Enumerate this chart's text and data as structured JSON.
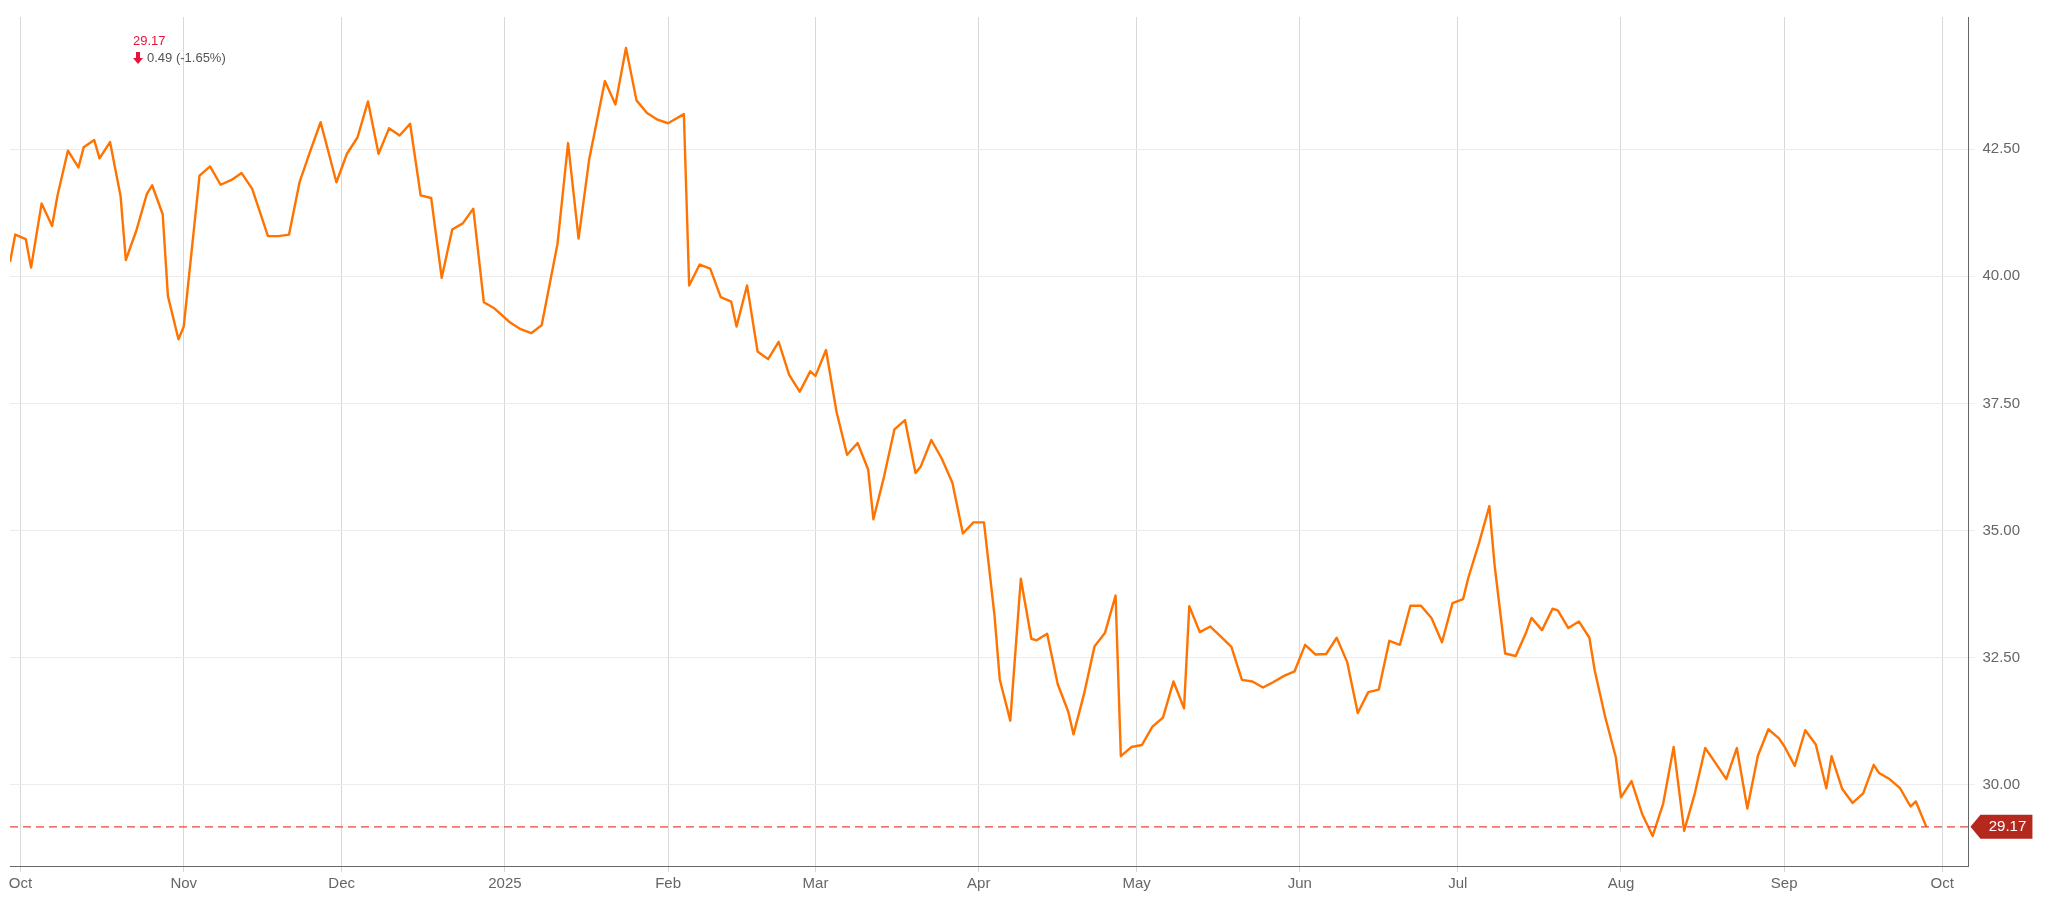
{
  "chart_data": {
    "type": "line",
    "annotations": [
      "29.17",
      "0.49 (-1.65%)"
    ],
    "x": [
      "2024-09-29",
      "2024-09-30",
      "2024-10-02",
      "2024-10-03",
      "2024-10-05",
      "2024-10-07",
      "2024-10-08",
      "2024-10-10",
      "2024-10-12",
      "2024-10-13",
      "2024-10-15",
      "2024-10-16",
      "2024-10-18",
      "2024-10-20",
      "2024-10-21",
      "2024-10-23",
      "2024-10-25",
      "2024-10-26",
      "2024-10-28",
      "2024-10-29",
      "2024-10-31",
      "2024-11-01",
      "2024-11-04",
      "2024-11-06",
      "2024-11-08",
      "2024-11-10",
      "2024-11-12",
      "2024-11-14",
      "2024-11-17",
      "2024-11-19",
      "2024-11-21",
      "2024-11-23",
      "2024-11-25",
      "2024-11-27",
      "2024-11-30",
      "2024-12-02",
      "2024-12-04",
      "2024-12-06",
      "2024-12-08",
      "2024-12-10",
      "2024-12-12",
      "2024-12-14",
      "2024-12-16",
      "2024-12-18",
      "2024-12-20",
      "2024-12-22",
      "2024-12-24",
      "2024-12-26",
      "2024-12-28",
      "2024-12-30",
      "2025-01-02",
      "2025-01-04",
      "2025-01-06",
      "2025-01-08",
      "2025-01-11",
      "2025-01-13",
      "2025-01-15",
      "2025-01-17",
      "2025-01-20",
      "2025-01-22",
      "2025-01-24",
      "2025-01-26",
      "2025-01-28",
      "2025-01-30",
      "2025-02-01",
      "2025-02-04",
      "2025-02-05",
      "2025-02-07",
      "2025-02-09",
      "2025-02-11",
      "2025-02-13",
      "2025-02-14",
      "2025-02-16",
      "2025-02-18",
      "2025-02-20",
      "2025-02-22",
      "2025-02-24",
      "2025-02-26",
      "2025-02-28",
      "2025-03-01",
      "2025-03-03",
      "2025-03-05",
      "2025-03-07",
      "2025-03-09",
      "2025-03-11",
      "2025-03-12",
      "2025-03-14",
      "2025-03-16",
      "2025-03-18",
      "2025-03-20",
      "2025-03-21",
      "2025-03-23",
      "2025-03-25",
      "2025-03-27",
      "2025-03-29",
      "2025-03-31",
      "2025-04-02",
      "2025-04-04",
      "2025-04-05",
      "2025-04-07",
      "2025-04-09",
      "2025-04-11",
      "2025-04-12",
      "2025-04-14",
      "2025-04-16",
      "2025-04-18",
      "2025-04-19",
      "2025-04-21",
      "2025-04-23",
      "2025-04-25",
      "2025-04-27",
      "2025-04-28",
      "2025-04-30",
      "2025-05-02",
      "2025-05-04",
      "2025-05-06",
      "2025-05-08",
      "2025-05-10",
      "2025-05-11",
      "2025-05-13",
      "2025-05-15",
      "2025-05-17",
      "2025-05-19",
      "2025-05-21",
      "2025-05-23",
      "2025-05-25",
      "2025-05-27",
      "2025-05-29",
      "2025-05-31",
      "2025-06-02",
      "2025-06-04",
      "2025-06-06",
      "2025-06-08",
      "2025-06-10",
      "2025-06-12",
      "2025-06-14",
      "2025-06-16",
      "2025-06-18",
      "2025-06-20",
      "2025-06-22",
      "2025-06-24",
      "2025-06-26",
      "2025-06-28",
      "2025-06-30",
      "2025-07-02",
      "2025-07-03",
      "2025-07-05",
      "2025-07-07",
      "2025-07-08",
      "2025-07-10",
      "2025-07-12",
      "2025-07-14",
      "2025-07-15",
      "2025-07-17",
      "2025-07-19",
      "2025-07-20",
      "2025-07-22",
      "2025-07-24",
      "2025-07-26",
      "2025-07-27",
      "2025-07-29",
      "2025-07-31",
      "2025-08-01",
      "2025-08-03",
      "2025-08-05",
      "2025-08-07",
      "2025-08-09",
      "2025-08-11",
      "2025-08-13",
      "2025-08-15",
      "2025-08-17",
      "2025-08-19",
      "2025-08-21",
      "2025-08-23",
      "2025-08-25",
      "2025-08-27",
      "2025-08-29",
      "2025-08-31",
      "2025-09-01",
      "2025-09-03",
      "2025-09-05",
      "2025-09-07",
      "2025-09-09",
      "2025-09-10",
      "2025-09-12",
      "2025-09-14",
      "2025-09-16",
      "2025-09-18",
      "2025-09-19",
      "2025-09-21",
      "2025-09-23",
      "2025-09-25",
      "2025-09-26",
      "2025-09-28"
    ],
    "series": [
      {
        "color": "#ff7300",
        "values": [
          40.28,
          40.82,
          40.73,
          40.17,
          41.43,
          40.99,
          41.58,
          42.47,
          42.14,
          42.54,
          42.68,
          42.32,
          42.64,
          41.58,
          40.32,
          40.9,
          41.62,
          41.79,
          41.22,
          39.61,
          38.76,
          39.01,
          41.98,
          42.16,
          41.8,
          41.89,
          42.03,
          41.72,
          40.79,
          40.79,
          40.82,
          41.85,
          42.45,
          43.03,
          41.85,
          42.41,
          42.73,
          43.44,
          42.41,
          42.91,
          42.77,
          43.0,
          41.59,
          41.54,
          39.97,
          40.92,
          41.04,
          41.33,
          39.49,
          39.37,
          39.09,
          38.96,
          38.88,
          39.04,
          40.64,
          42.62,
          40.74,
          42.29,
          43.84,
          43.38,
          44.49,
          43.46,
          43.21,
          43.08,
          43.01,
          43.19,
          39.82,
          40.23,
          40.15,
          39.59,
          39.5,
          39.01,
          39.82,
          38.52,
          38.37,
          38.71,
          38.06,
          37.73,
          38.13,
          38.04,
          38.55,
          37.33,
          36.49,
          36.72,
          36.2,
          35.22,
          36.05,
          36.99,
          37.17,
          36.13,
          36.26,
          36.78,
          36.41,
          35.94,
          34.94,
          35.16,
          35.16,
          33.33,
          32.07,
          31.26,
          34.05,
          32.87,
          32.84,
          32.97,
          31.98,
          31.44,
          30.99,
          31.78,
          32.72,
          32.99,
          33.72,
          30.56,
          30.74,
          30.78,
          31.14,
          31.32,
          32.03,
          31.5,
          33.51,
          33.0,
          33.11,
          32.91,
          32.71,
          32.06,
          32.03,
          31.91,
          32.02,
          32.14,
          32.23,
          32.75,
          32.56,
          32.57,
          32.89,
          32.41,
          31.41,
          31.82,
          31.87,
          32.83,
          32.75,
          33.52,
          33.52,
          33.28,
          32.8,
          33.57,
          33.65,
          34.07,
          34.74,
          35.48,
          34.31,
          32.58,
          32.53,
          33.0,
          33.28,
          33.04,
          33.46,
          33.43,
          33.08,
          33.21,
          32.89,
          32.25,
          31.33,
          30.55,
          29.75,
          30.07,
          29.43,
          28.99,
          29.62,
          30.74,
          29.09,
          29.82,
          30.72,
          30.42,
          30.11,
          30.72,
          29.53,
          30.57,
          31.09,
          30.91,
          30.76,
          30.37,
          31.07,
          30.79,
          29.93,
          30.56,
          29.92,
          29.64,
          29.83,
          30.39,
          30.23,
          30.11,
          29.93,
          29.57,
          29.67,
          29.17
        ]
      }
    ],
    "xlim": [
      "2024-09-29",
      "2025-10-06"
    ],
    "xticks": [
      {
        "value": "2024-10-01",
        "label": "Oct"
      },
      {
        "value": "2024-11-01",
        "label": "Nov"
      },
      {
        "value": "2024-12-01",
        "label": "Dec"
      },
      {
        "value": "2025-01-01",
        "label": "2025"
      },
      {
        "value": "2025-02-01",
        "label": "Feb"
      },
      {
        "value": "2025-03-01",
        "label": "Mar"
      },
      {
        "value": "2025-04-01",
        "label": "Apr"
      },
      {
        "value": "2025-05-01",
        "label": "May"
      },
      {
        "value": "2025-06-01",
        "label": "Jun"
      },
      {
        "value": "2025-07-01",
        "label": "Jul"
      },
      {
        "value": "2025-08-01",
        "label": "Aug"
      },
      {
        "value": "2025-09-01",
        "label": "Sep"
      },
      {
        "value": "2025-10-01",
        "label": "Oct"
      }
    ],
    "ylim": [
      28.4,
      45.1
    ],
    "yticks": [
      {
        "value": 30,
        "label": "30.00"
      },
      {
        "value": 32.5,
        "label": "32.50"
      },
      {
        "value": 35,
        "label": "35.00"
      },
      {
        "value": 37.5,
        "label": "37.50"
      },
      {
        "value": 40,
        "label": "40.00"
      },
      {
        "value": 42.5,
        "label": "42.50"
      }
    ],
    "ref_lines": [
      {
        "axis": "y",
        "value": 29.17,
        "label": "29.17",
        "color": "#e8453c",
        "line_style": "dashed"
      }
    ],
    "grid": true,
    "legend": false,
    "marker": "none",
    "line_style": "solid"
  }
}
